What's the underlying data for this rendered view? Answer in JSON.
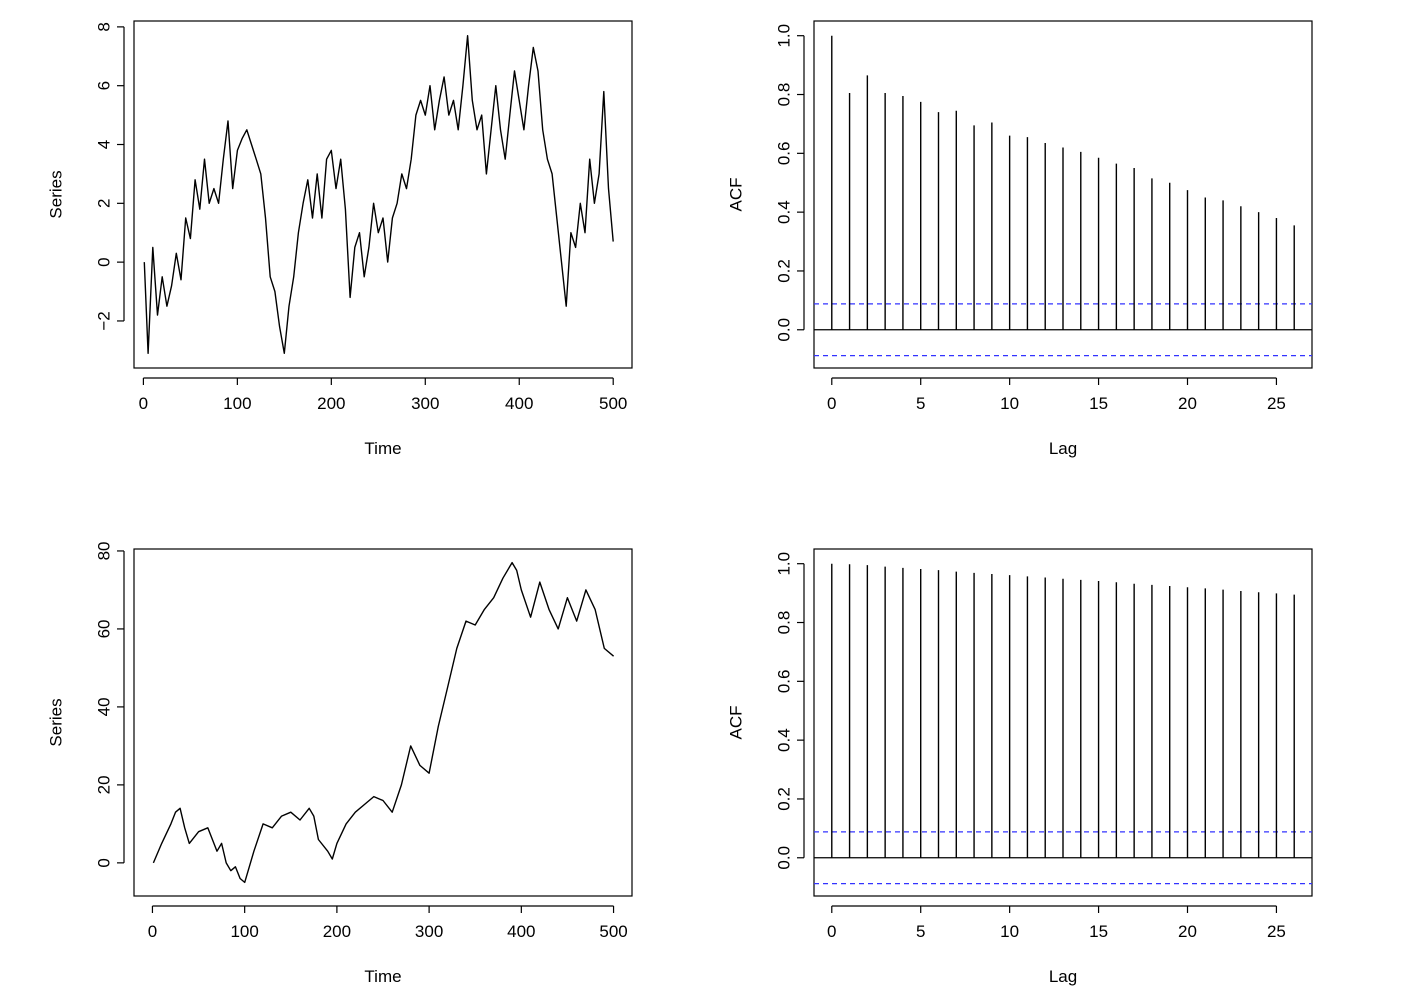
{
  "chart_data": [
    {
      "type": "line",
      "xlabel": "Time",
      "ylabel": "Series",
      "xlim": [
        -10,
        520
      ],
      "ylim": [
        -3.6,
        8.2
      ],
      "xticks": [
        0,
        100,
        200,
        300,
        400,
        500
      ],
      "yticks": [
        -2,
        0,
        2,
        4,
        6,
        8
      ],
      "ytick_labels": [
        "−2",
        "0",
        "2",
        "4",
        "6",
        "8"
      ],
      "series": [
        {
          "x": [
            1,
            5,
            10,
            15,
            20,
            25,
            30,
            35,
            40,
            45,
            50,
            55,
            60,
            65,
            70,
            75,
            80,
            85,
            90,
            95,
            100,
            105,
            110,
            115,
            120,
            125,
            130,
            135,
            140,
            145,
            150,
            155,
            160,
            165,
            170,
            175,
            180,
            185,
            190,
            195,
            200,
            205,
            210,
            215,
            220,
            225,
            230,
            235,
            240,
            245,
            250,
            255,
            260,
            265,
            270,
            275,
            280,
            285,
            290,
            295,
            300,
            305,
            310,
            315,
            320,
            325,
            330,
            335,
            340,
            345,
            350,
            355,
            360,
            365,
            370,
            375,
            380,
            385,
            390,
            395,
            400,
            405,
            410,
            415,
            420,
            425,
            430,
            435,
            440,
            445,
            450,
            455,
            460,
            465,
            470,
            475,
            480,
            485,
            490,
            495,
            500
          ],
          "values": [
            0.0,
            -3.1,
            0.5,
            -1.8,
            -0.5,
            -1.5,
            -0.8,
            0.3,
            -0.6,
            1.5,
            0.8,
            2.8,
            1.8,
            3.5,
            2.0,
            2.5,
            2.0,
            3.5,
            4.8,
            2.5,
            3.8,
            4.2,
            4.5,
            4.0,
            3.5,
            3.0,
            1.5,
            -0.5,
            -1.0,
            -2.2,
            -3.1,
            -1.5,
            -0.5,
            1.0,
            2.0,
            2.8,
            1.5,
            3.0,
            1.5,
            3.5,
            3.8,
            2.5,
            3.5,
            1.8,
            -1.2,
            0.5,
            1.0,
            -0.5,
            0.5,
            2.0,
            1.0,
            1.5,
            0.0,
            1.5,
            2.0,
            3.0,
            2.5,
            3.5,
            5.0,
            5.5,
            5.0,
            6.0,
            4.5,
            5.5,
            6.3,
            5.0,
            5.5,
            4.5,
            6.0,
            7.7,
            5.5,
            4.5,
            5.0,
            3.0,
            4.5,
            6.0,
            4.5,
            3.5,
            5.0,
            6.5,
            5.5,
            4.5,
            6.0,
            7.3,
            6.5,
            4.5,
            3.5,
            3.0,
            1.5,
            0.0,
            -1.5,
            1.0,
            0.5,
            2.0,
            1.0,
            3.5,
            2.0,
            3.0,
            5.8,
            2.5,
            0.7
          ]
        }
      ]
    },
    {
      "type": "bar",
      "xlabel": "Lag",
      "ylabel": "ACF",
      "xlim": [
        -1,
        27
      ],
      "ylim": [
        -0.13,
        1.05
      ],
      "xticks": [
        0,
        5,
        10,
        15,
        20,
        25
      ],
      "yticks": [
        0.0,
        0.2,
        0.4,
        0.6,
        0.8,
        1.0
      ],
      "ytick_labels": [
        "0.0",
        "0.2",
        "0.4",
        "0.6",
        "0.8",
        "1.0"
      ],
      "lags": [
        0,
        1,
        2,
        3,
        4,
        5,
        6,
        7,
        8,
        9,
        10,
        11,
        12,
        13,
        14,
        15,
        16,
        17,
        18,
        19,
        20,
        21,
        22,
        23,
        24,
        25,
        26
      ],
      "values": [
        1.0,
        0.805,
        0.865,
        0.805,
        0.795,
        0.775,
        0.74,
        0.745,
        0.695,
        0.705,
        0.66,
        0.655,
        0.635,
        0.62,
        0.605,
        0.585,
        0.565,
        0.55,
        0.515,
        0.5,
        0.475,
        0.45,
        0.44,
        0.42,
        0.4,
        0.38,
        0.355
      ],
      "ci": 0.088,
      "ci_color": "#3333ff"
    },
    {
      "type": "line",
      "xlabel": "Time",
      "ylabel": "Series",
      "xlim": [
        -20,
        520
      ],
      "ylim": [
        -8.5,
        80.5
      ],
      "xticks": [
        0,
        100,
        200,
        300,
        400,
        500
      ],
      "yticks": [
        0,
        20,
        40,
        60,
        80
      ],
      "ytick_labels": [
        "0",
        "20",
        "40",
        "60",
        "80"
      ],
      "series": [
        {
          "x": [
            1,
            10,
            20,
            25,
            30,
            35,
            40,
            50,
            60,
            70,
            75,
            80,
            85,
            90,
            95,
            100,
            110,
            120,
            130,
            140,
            150,
            160,
            170,
            175,
            180,
            190,
            195,
            200,
            210,
            220,
            230,
            240,
            250,
            260,
            270,
            280,
            290,
            300,
            310,
            320,
            330,
            340,
            350,
            360,
            370,
            380,
            390,
            395,
            400,
            410,
            420,
            430,
            440,
            450,
            460,
            470,
            480,
            490,
            500
          ],
          "values": [
            0,
            5,
            10,
            13,
            14,
            9,
            5,
            8,
            9,
            3,
            5,
            0,
            -2,
            -1,
            -4,
            -5,
            3,
            10,
            9,
            12,
            13,
            11,
            14,
            12,
            6,
            3,
            1,
            5,
            10,
            13,
            15,
            17,
            16,
            13,
            20,
            30,
            25,
            23,
            35,
            45,
            55,
            62,
            61,
            65,
            68,
            73,
            77,
            75,
            70,
            63,
            72,
            65,
            60,
            68,
            62,
            70,
            65,
            55,
            53
          ]
        }
      ]
    },
    {
      "type": "bar",
      "xlabel": "Lag",
      "ylabel": "ACF",
      "xlim": [
        -1,
        27
      ],
      "ylim": [
        -0.13,
        1.05
      ],
      "xticks": [
        0,
        5,
        10,
        15,
        20,
        25
      ],
      "yticks": [
        0.0,
        0.2,
        0.4,
        0.6,
        0.8,
        1.0
      ],
      "ytick_labels": [
        "0.0",
        "0.2",
        "0.4",
        "0.6",
        "0.8",
        "1.0"
      ],
      "lags": [
        0,
        1,
        2,
        3,
        4,
        5,
        6,
        7,
        8,
        9,
        10,
        11,
        12,
        13,
        14,
        15,
        16,
        17,
        18,
        19,
        20,
        21,
        22,
        23,
        24,
        25,
        26
      ],
      "values": [
        1.0,
        0.998,
        0.995,
        0.99,
        0.986,
        0.982,
        0.978,
        0.973,
        0.969,
        0.965,
        0.961,
        0.957,
        0.953,
        0.949,
        0.945,
        0.941,
        0.937,
        0.932,
        0.928,
        0.924,
        0.92,
        0.916,
        0.912,
        0.907,
        0.903,
        0.899,
        0.895
      ],
      "ci": 0.088,
      "ci_color": "#3333ff"
    }
  ]
}
